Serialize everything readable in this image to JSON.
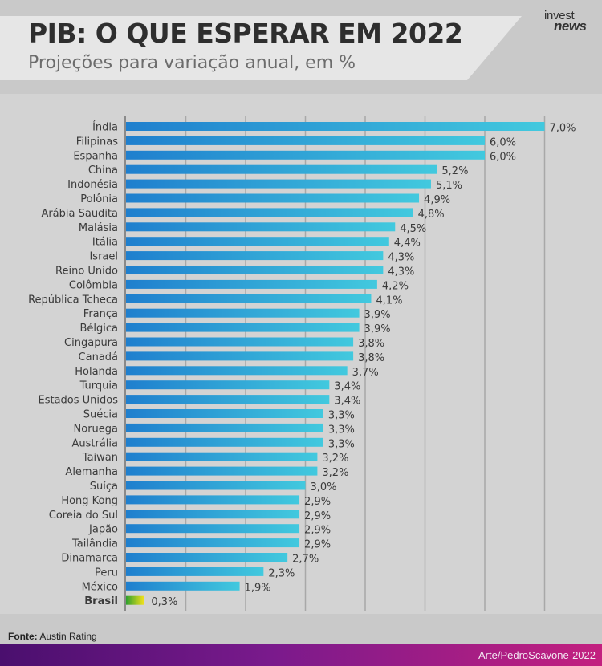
{
  "header": {
    "title": "PIB: O QUE ESPERAR EM 2022",
    "subtitle": "Projeções para variação anual, em %",
    "logo_top": "invest",
    "logo_bottom": "news"
  },
  "footer": {
    "source_label": "Fonte:",
    "source_value": "Austin Rating",
    "credit": "Arte/PedroScavone-2022"
  },
  "colors": {
    "bar_start": "#1f7fce",
    "bar_end": "#42c9de",
    "highlight_start": "#2ea02e",
    "highlight_end": "#f2e11c",
    "highlight_label": "#2f8f2f",
    "gridline": "#a8a8a8",
    "header_band": "#e6e6e6"
  },
  "chart_data": {
    "type": "bar",
    "orientation": "horizontal",
    "title": "PIB: O QUE ESPERAR EM 2022",
    "subtitle": "Projeções para variação anual, em %",
    "categories": [
      "Índia",
      "Filipinas",
      "Espanha",
      "China",
      "Indonésia",
      "Polônia",
      "Arábia Saudita",
      "Malásia",
      "Itália",
      "Israel",
      "Reino Unido",
      "Colômbia",
      "República Tcheca",
      "França",
      "Bélgica",
      "Cingapura",
      "Canadá",
      "Holanda",
      "Turquia",
      "Estados Unidos",
      "Suécia",
      "Noruega",
      "Austrália",
      "Taiwan",
      "Alemanha",
      "Suíça",
      "Hong Kong",
      "Coreia do Sul",
      "Japão",
      "Tailândia",
      "Dinamarca",
      "Peru",
      "México",
      "Brasil"
    ],
    "values": [
      7.0,
      6.0,
      6.0,
      5.2,
      5.1,
      4.9,
      4.8,
      4.5,
      4.4,
      4.3,
      4.3,
      4.2,
      4.1,
      3.9,
      3.9,
      3.8,
      3.8,
      3.7,
      3.4,
      3.4,
      3.3,
      3.3,
      3.3,
      3.2,
      3.2,
      3.0,
      2.9,
      2.9,
      2.9,
      2.9,
      2.7,
      2.3,
      1.9,
      0.3
    ],
    "value_labels": [
      "7,0%",
      "6,0%",
      "6,0%",
      "5,2%",
      "5,1%",
      "4,9%",
      "4,8%",
      "4,5%",
      "4,4%",
      "4,3%",
      "4,3%",
      "4,2%",
      "4,1%",
      "3,9%",
      "3,9%",
      "3,8%",
      "3,8%",
      "3,7%",
      "3,4%",
      "3,4%",
      "3,3%",
      "3,3%",
      "3,3%",
      "3,2%",
      "3,2%",
      "3,0%",
      "2,9%",
      "2,9%",
      "2,9%",
      "2,9%",
      "2,7%",
      "2,3%",
      "1,9%",
      "0,3%"
    ],
    "highlight": "Brasil",
    "xlim": [
      0,
      8
    ],
    "grid": true,
    "legend": "none"
  }
}
